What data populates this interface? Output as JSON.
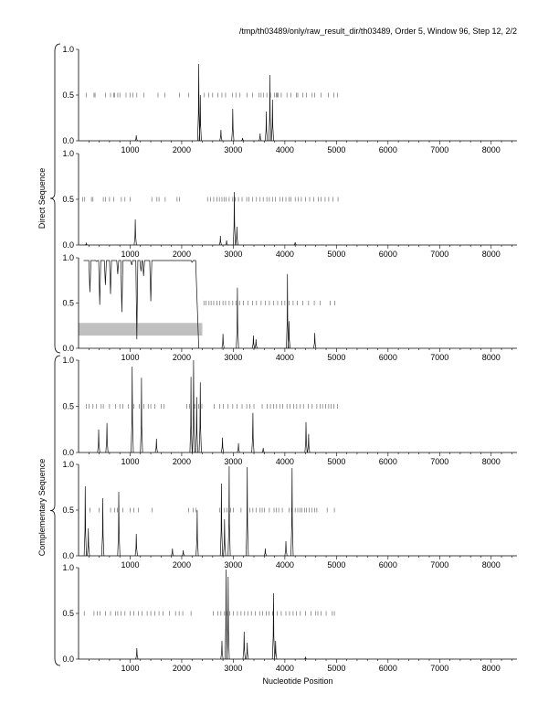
{
  "header": "/tmp/th03489/only/raw_result_dir/th03489, Order 5, Window 96, Step 12, 2/2",
  "xlabel": "Nucleotide Position",
  "group_labels": [
    "Direct Sequence",
    "Complementary Sequence"
  ],
  "chart_data": [
    {
      "type": "line",
      "group": "Direct Sequence",
      "xlim": [
        0,
        8500
      ],
      "ylim": [
        0,
        1
      ],
      "x_ticks": [
        1000,
        2000,
        3000,
        4000,
        5000,
        6000,
        7000,
        8000
      ],
      "y_ticks": [
        "0.0",
        "0.5",
        "1.0"
      ],
      "peaks": [
        [
          1120,
          0.06
        ],
        [
          2330,
          0.84
        ],
        [
          2360,
          0.5
        ],
        [
          2760,
          0.12
        ],
        [
          2990,
          0.35
        ],
        [
          3180,
          0.03
        ],
        [
          3520,
          0.08
        ],
        [
          3640,
          0.32
        ],
        [
          3710,
          0.72
        ],
        [
          3760,
          0.45
        ]
      ],
      "marks": [
        150,
        300,
        320,
        520,
        620,
        680,
        700,
        760,
        800,
        920,
        1000,
        1050,
        1130,
        1270,
        1540,
        1670,
        1960,
        2130,
        2440,
        2520,
        2600,
        2700,
        2780,
        2850,
        2980,
        3050,
        3130,
        3270,
        3370,
        3500,
        3540,
        3590,
        3650,
        3720,
        3800,
        3830,
        3850,
        3870,
        3930,
        4040,
        4120,
        4220,
        4250,
        4350,
        4420,
        4530,
        4580,
        4700,
        4840,
        4950,
        5020
      ]
    },
    {
      "type": "line",
      "group": "Direct Sequence",
      "xlim": [
        0,
        8500
      ],
      "ylim": [
        0,
        1
      ],
      "x_ticks": [
        1000,
        2000,
        3000,
        4000,
        5000,
        6000,
        7000,
        8000
      ],
      "y_ticks": [
        "0.0",
        "0.5",
        "1.0"
      ],
      "peaks": [
        [
          150,
          0.02
        ],
        [
          1100,
          0.28
        ],
        [
          2750,
          0.1
        ],
        [
          2870,
          0.05
        ],
        [
          3020,
          0.58
        ],
        [
          3070,
          0.2
        ],
        [
          4200,
          0.03
        ]
      ],
      "marks": [
        80,
        120,
        250,
        280,
        480,
        520,
        600,
        680,
        830,
        900,
        1000,
        1420,
        1520,
        1560,
        1680,
        1910,
        1960,
        2500,
        2560,
        2620,
        2680,
        2730,
        2780,
        2820,
        2860,
        2920,
        2990,
        3040,
        3100,
        3170,
        3260,
        3300,
        3370,
        3450,
        3520,
        3580,
        3650,
        3700,
        3760,
        3820,
        3900,
        3960,
        4020,
        4080,
        4120,
        4200,
        4260,
        4320,
        4400,
        4480,
        4560,
        4650,
        4700,
        4780,
        4850,
        4930,
        5030
      ]
    },
    {
      "type": "line",
      "group": "Direct Sequence",
      "xlim": [
        0,
        8500
      ],
      "ylim": [
        0,
        1
      ],
      "x_ticks": [
        1000,
        2000,
        3000,
        4000,
        5000,
        6000,
        7000,
        8000
      ],
      "y_ticks": [
        "0.0",
        "0.5",
        "1.0"
      ],
      "baseline_start": 100,
      "baseline_end": 2330,
      "dips": [
        [
          220,
          0.62
        ],
        [
          350,
          0.96
        ],
        [
          410,
          0.48
        ],
        [
          520,
          0.7
        ],
        [
          620,
          0.6
        ],
        [
          760,
          0.82
        ],
        [
          840,
          0.4
        ],
        [
          1030,
          0.92
        ],
        [
          1130,
          0.1
        ],
        [
          1210,
          0.85
        ],
        [
          1260,
          0.8
        ],
        [
          1400,
          0.52
        ],
        [
          2200,
          0.95
        ]
      ],
      "peaks": [
        [
          2800,
          0.16
        ],
        [
          3080,
          0.67
        ],
        [
          3390,
          0.14
        ],
        [
          3440,
          0.1
        ],
        [
          4050,
          0.82
        ],
        [
          4080,
          0.3
        ],
        [
          4580,
          0.17
        ]
      ],
      "marks": [
        2430,
        2470,
        2530,
        2570,
        2620,
        2680,
        2740,
        2800,
        2850,
        2920,
        2990,
        3050,
        3120,
        3200,
        3280,
        3370,
        3450,
        3540,
        3620,
        3700,
        3780,
        3860,
        3940,
        4000,
        4080,
        4160,
        4240,
        4350,
        4460,
        4570,
        4680,
        4880,
        4970
      ],
      "highlight": {
        "x0": 0,
        "x1": 2400,
        "y0": 0.14,
        "y1": 0.28,
        "color": "#c0c0c0"
      }
    },
    {
      "type": "line",
      "group": "Complementary Sequence",
      "xlim": [
        0,
        8500
      ],
      "ylim": [
        0,
        1
      ],
      "x_ticks": [
        1000,
        2000,
        3000,
        4000,
        5000,
        6000,
        7000,
        8000
      ],
      "y_ticks": [
        "0.0",
        "0.5",
        "1.0"
      ],
      "peaks": [
        [
          390,
          0.25
        ],
        [
          550,
          0.32
        ],
        [
          1040,
          0.93
        ],
        [
          1220,
          0.81
        ],
        [
          1510,
          0.15
        ],
        [
          2180,
          0.82
        ],
        [
          2230,
          1.0
        ],
        [
          2290,
          0.6
        ],
        [
          2360,
          0.76
        ],
        [
          2790,
          0.16
        ],
        [
          3100,
          0.1
        ],
        [
          3380,
          0.43
        ],
        [
          3580,
          0.05
        ],
        [
          4410,
          0.33
        ],
        [
          4460,
          0.2
        ]
      ],
      "marks": [
        150,
        200,
        280,
        350,
        440,
        480,
        600,
        720,
        800,
        860,
        970,
        1070,
        1180,
        1270,
        1350,
        1400,
        1480,
        1600,
        1660,
        2100,
        2150,
        2250,
        2330,
        2390,
        2630,
        2740,
        2810,
        2900,
        2990,
        3070,
        3170,
        3260,
        3320,
        3400,
        3560,
        3660,
        3720,
        3780,
        3840,
        3900,
        3960,
        4040,
        4100,
        4170,
        4230,
        4300,
        4360,
        4450,
        4530,
        4620,
        4680,
        4730,
        4790,
        4850,
        4900,
        4950,
        5020
      ]
    },
    {
      "type": "line",
      "group": "Complementary Sequence",
      "xlim": [
        0,
        8500
      ],
      "ylim": [
        0,
        1
      ],
      "x_ticks": [
        1000,
        2000,
        3000,
        4000,
        5000,
        6000,
        7000,
        8000
      ],
      "y_ticks": [
        "0.0",
        "0.5",
        "1.0"
      ],
      "peaks": [
        [
          130,
          0.76
        ],
        [
          190,
          0.3
        ],
        [
          470,
          0.63
        ],
        [
          780,
          0.7
        ],
        [
          1120,
          0.24
        ],
        [
          1820,
          0.08
        ],
        [
          2030,
          0.06
        ],
        [
          2300,
          0.5
        ],
        [
          2770,
          0.79
        ],
        [
          2830,
          0.4
        ],
        [
          2920,
          0.98
        ],
        [
          3270,
          0.97
        ],
        [
          3620,
          0.08
        ],
        [
          4020,
          0.16
        ],
        [
          4140,
          0.96
        ]
      ],
      "marks": [
        130,
        220,
        400,
        620,
        700,
        750,
        860,
        1000,
        1070,
        1160,
        1430,
        2130,
        2220,
        2280,
        2740,
        2830,
        2880,
        2950,
        3000,
        3150,
        3270,
        3320,
        3380,
        3440,
        3520,
        3560,
        3600,
        3700,
        3790,
        3830,
        3880,
        3950,
        4080,
        4130,
        4200,
        4250,
        4290,
        4330,
        4380,
        4420,
        4470,
        4520,
        4580,
        4620,
        4820,
        4960
      ]
    },
    {
      "type": "line",
      "group": "Complementary Sequence",
      "xlim": [
        0,
        8500
      ],
      "ylim": [
        0,
        1
      ],
      "x_ticks": [
        1000,
        2000,
        3000,
        4000,
        5000,
        6000,
        7000,
        8000
      ],
      "y_ticks": [
        "0.0",
        "0.5",
        "1.0"
      ],
      "peaks": [
        [
          1130,
          0.12
        ],
        [
          2780,
          0.2
        ],
        [
          2860,
          0.98
        ],
        [
          2900,
          0.9
        ],
        [
          3210,
          0.3
        ],
        [
          3270,
          0.18
        ],
        [
          3780,
          0.72
        ],
        [
          3820,
          0.2
        ],
        [
          4400,
          0.02
        ]
      ],
      "marks": [
        110,
        300,
        360,
        420,
        520,
        620,
        720,
        760,
        820,
        900,
        1000,
        1070,
        1160,
        1230,
        1330,
        1400,
        1480,
        1560,
        1640,
        1760,
        1880,
        1950,
        2020,
        2180,
        2610,
        2700,
        2760,
        2830,
        2870,
        2930,
        3000,
        3080,
        3150,
        3220,
        3280,
        3350,
        3430,
        3510,
        3570,
        3640,
        3690,
        3760,
        3850,
        3930,
        4020,
        4090,
        4160,
        4220,
        4300,
        4400,
        4510,
        4600,
        4640,
        4700,
        4800,
        4920,
        4960
      ]
    }
  ]
}
